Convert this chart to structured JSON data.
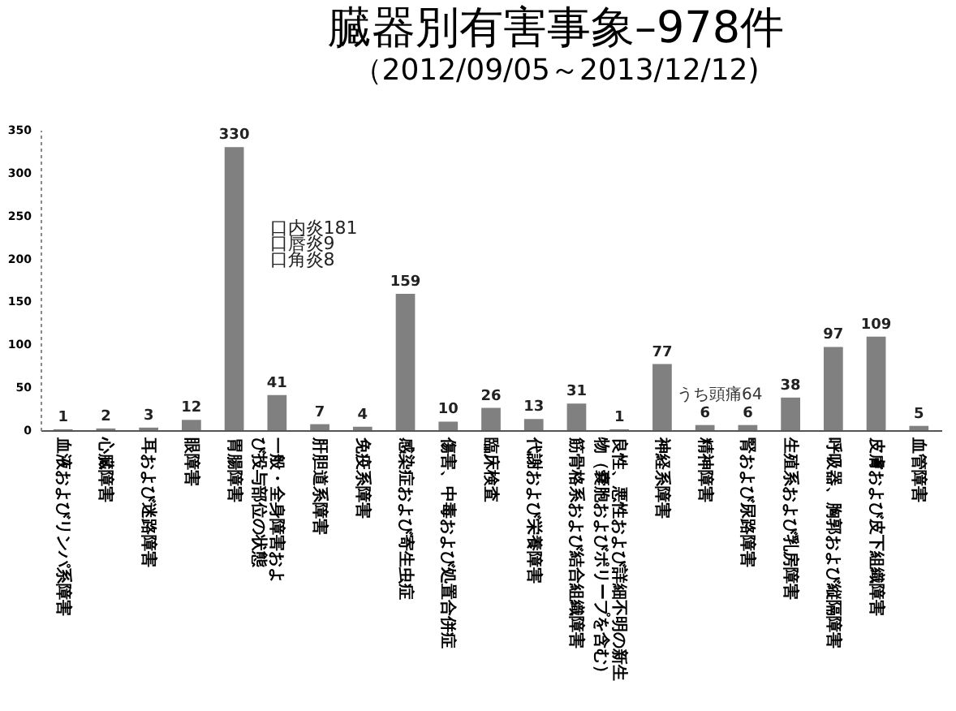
{
  "chart_data": {
    "type": "bar",
    "title": "臓器別有害事象–978件",
    "subtitle": "（2012/09/05～2013/12/12)",
    "categories": [
      "血液およびリンパ系障害",
      "心臓障害",
      "耳および迷路障害",
      "眼障害",
      "胃腸障害",
      "一般・全身障害および投与部位の状態",
      "肝胆道系障害",
      "免疫系障害",
      "感染症および寄生虫症",
      "傷害、中毒および処置合併症",
      "臨床検査",
      "代謝および栄養障害",
      "筋骨格系および結合組織障害",
      "良性、悪性および詳細不明の新生物（嚢胞およびポリープを含む）",
      "神経系障害",
      "精神障害",
      "腎および尿路障害",
      "生殖系および乳房障害",
      "呼吸器、胸郭および縦隔障害",
      "皮膚および皮下組織障害",
      "血管障害"
    ],
    "values": [
      1,
      2,
      3,
      12,
      330,
      41,
      7,
      4,
      159,
      10,
      26,
      13,
      31,
      1,
      77,
      6,
      6,
      38,
      97,
      109,
      5
    ],
    "color": "#808080",
    "ylim": [
      0,
      350
    ],
    "yticks": [
      0,
      50,
      100,
      150,
      200,
      250,
      300,
      350
    ],
    "data_labels": true,
    "annotations": [
      {
        "text": "口内炎181",
        "x": "胃腸障害",
        "y": 235
      },
      {
        "text": "口唇炎9",
        "x": "胃腸障害",
        "y": 217
      },
      {
        "text": "口角炎8",
        "x": "胃腸障害",
        "y": 198
      },
      {
        "text": "うち頭痛64",
        "x": "神経系障害",
        "y": 42
      }
    ]
  }
}
